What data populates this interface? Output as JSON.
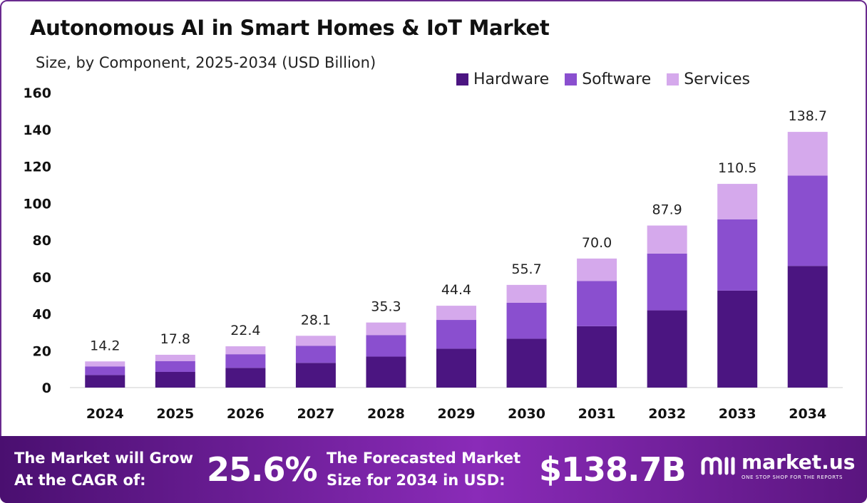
{
  "title": "Autonomous AI in Smart Homes & IoT Market",
  "subtitle": "Size, by Component, 2025-2034 (USD Billion)",
  "legend": [
    {
      "label": "Hardware",
      "color": "#4b1581"
    },
    {
      "label": "Software",
      "color": "#8a4fcf"
    },
    {
      "label": "Services",
      "color": "#d5a9ec"
    }
  ],
  "chart_data": {
    "type": "bar",
    "stacked": true,
    "categories": [
      "2024",
      "2025",
      "2026",
      "2027",
      "2028",
      "2029",
      "2030",
      "2031",
      "2032",
      "2033",
      "2034"
    ],
    "series": [
      {
        "name": "Hardware",
        "color": "#4b1581",
        "values": [
          6.8,
          8.5,
          10.7,
          13.4,
          16.8,
          21.1,
          26.5,
          33.3,
          41.9,
          52.6,
          66.0
        ]
      },
      {
        "name": "Software",
        "color": "#8a4fcf",
        "values": [
          4.7,
          5.9,
          7.4,
          9.3,
          11.7,
          15.6,
          19.5,
          24.5,
          30.8,
          38.7,
          49.0
        ]
      },
      {
        "name": "Services",
        "color": "#d5a9ec",
        "values": [
          2.7,
          3.4,
          4.3,
          5.4,
          6.8,
          7.7,
          9.7,
          12.2,
          15.2,
          19.2,
          23.7
        ]
      }
    ],
    "totals": [
      "14.2",
      "17.8",
      "22.4",
      "28.1",
      "35.3",
      "44.4",
      "55.7",
      "70.0",
      "87.9",
      "110.5",
      "138.7"
    ],
    "yticks": [
      0,
      20,
      40,
      60,
      80,
      100,
      120,
      140,
      160
    ],
    "ylim": [
      0,
      160
    ],
    "grid": false,
    "legend_position": "top-right"
  },
  "footer": {
    "cagr_label_line1": "The Market will Grow",
    "cagr_label_line2": "At the CAGR of:",
    "cagr_value": "25.6%",
    "forecast_label_line1": "The Forecasted Market",
    "forecast_label_line2": "Size for 2034 in USD:",
    "forecast_value": "$138.7B",
    "logo_name": "market.us",
    "logo_tagline": "ONE STOP SHOP FOR THE REPORTS"
  }
}
